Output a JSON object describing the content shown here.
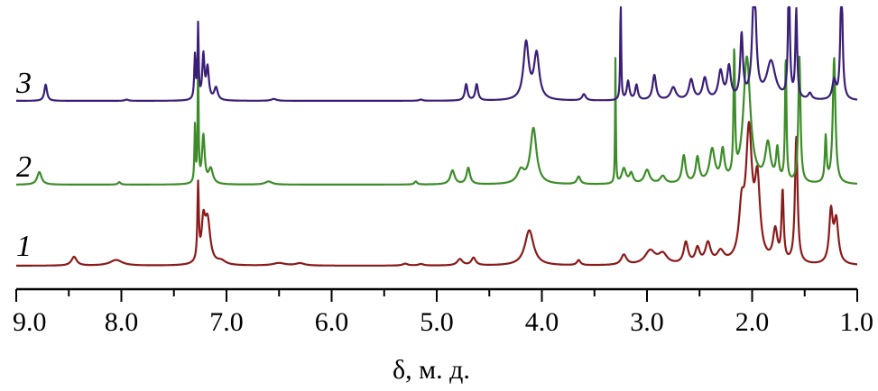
{
  "chart_data": {
    "type": "line",
    "xlabel": "δ, м. д.",
    "ylabel": "",
    "xlim": [
      9.0,
      1.0
    ],
    "x_reversed": true,
    "x_ticks": [
      9.0,
      8.0,
      7.0,
      6.0,
      5.0,
      4.0,
      3.0,
      2.0,
      1.0
    ],
    "x_tick_labels": [
      "9.0",
      "8.0",
      "7.0",
      "6.0",
      "5.0",
      "4.0",
      "3.0",
      "2.0",
      "1.0"
    ],
    "grid": false,
    "legend": "none",
    "series": [
      {
        "label": "1",
        "color": "#8b1a1a",
        "baseline": 0,
        "peaks": [
          [
            8.45,
            0.07,
            0.03
          ],
          [
            8.05,
            0.045,
            0.07
          ],
          [
            7.27,
            0.6,
            0.008
          ],
          [
            7.22,
            0.3,
            0.02
          ],
          [
            7.18,
            0.34,
            0.03
          ],
          [
            7.05,
            0.03,
            0.05
          ],
          [
            6.5,
            0.02,
            0.07
          ],
          [
            6.3,
            0.018,
            0.05
          ],
          [
            5.3,
            0.015,
            0.03
          ],
          [
            5.15,
            0.012,
            0.03
          ],
          [
            4.78,
            0.05,
            0.03
          ],
          [
            4.65,
            0.06,
            0.025
          ],
          [
            4.12,
            0.28,
            0.05
          ],
          [
            3.65,
            0.04,
            0.02
          ],
          [
            3.22,
            0.08,
            0.03
          ],
          [
            2.97,
            0.11,
            0.06
          ],
          [
            2.85,
            0.08,
            0.05
          ],
          [
            2.63,
            0.17,
            0.025
          ],
          [
            2.52,
            0.12,
            0.025
          ],
          [
            2.42,
            0.16,
            0.03
          ],
          [
            2.3,
            0.09,
            0.04
          ],
          [
            2.1,
            0.37,
            0.03
          ],
          [
            2.03,
            1.0,
            0.035
          ],
          [
            1.95,
            0.6,
            0.03
          ],
          [
            1.78,
            0.25,
            0.025
          ],
          [
            1.71,
            0.55,
            0.012
          ],
          [
            1.58,
            1.0,
            0.015
          ],
          [
            1.25,
            0.4,
            0.02
          ],
          [
            1.2,
            0.34,
            0.025
          ]
        ]
      },
      {
        "label": "2",
        "color": "#3c8c28",
        "baseline": 0,
        "peaks": [
          [
            8.78,
            0.1,
            0.025
          ],
          [
            8.02,
            0.02,
            0.015
          ],
          [
            7.3,
            0.45,
            0.006
          ],
          [
            7.27,
            1.0,
            0.005
          ],
          [
            7.22,
            0.38,
            0.015
          ],
          [
            7.15,
            0.12,
            0.025
          ],
          [
            6.6,
            0.025,
            0.04
          ],
          [
            5.2,
            0.025,
            0.015
          ],
          [
            4.85,
            0.11,
            0.025
          ],
          [
            4.7,
            0.13,
            0.02
          ],
          [
            4.2,
            0.1,
            0.04
          ],
          [
            4.08,
            0.44,
            0.035
          ],
          [
            3.65,
            0.06,
            0.02
          ],
          [
            3.3,
            1.0,
            0.004
          ],
          [
            3.22,
            0.12,
            0.025
          ],
          [
            3.15,
            0.08,
            0.02
          ],
          [
            3.0,
            0.11,
            0.03
          ],
          [
            2.85,
            0.06,
            0.03
          ],
          [
            2.65,
            0.22,
            0.02
          ],
          [
            2.52,
            0.2,
            0.02
          ],
          [
            2.38,
            0.26,
            0.03
          ],
          [
            2.28,
            0.24,
            0.02
          ],
          [
            2.17,
            1.0,
            0.008
          ],
          [
            2.05,
            1.0,
            0.04
          ],
          [
            1.85,
            0.3,
            0.03
          ],
          [
            1.76,
            0.25,
            0.015
          ],
          [
            1.68,
            1.0,
            0.008
          ],
          [
            1.55,
            1.0,
            0.012
          ],
          [
            1.3,
            0.36,
            0.01
          ],
          [
            1.22,
            1.0,
            0.015
          ]
        ]
      },
      {
        "label": "3",
        "color": "#3a1e78",
        "baseline": 0,
        "peaks": [
          [
            8.72,
            0.13,
            0.015
          ],
          [
            7.95,
            0.01,
            0.02
          ],
          [
            7.3,
            0.35,
            0.008
          ],
          [
            7.27,
            0.58,
            0.006
          ],
          [
            7.22,
            0.35,
            0.012
          ],
          [
            7.18,
            0.25,
            0.015
          ],
          [
            7.1,
            0.1,
            0.02
          ],
          [
            6.55,
            0.015,
            0.03
          ],
          [
            5.15,
            0.01,
            0.02
          ],
          [
            4.72,
            0.13,
            0.015
          ],
          [
            4.62,
            0.13,
            0.015
          ],
          [
            4.15,
            0.45,
            0.03
          ],
          [
            4.05,
            0.36,
            0.03
          ],
          [
            3.6,
            0.05,
            0.02
          ],
          [
            3.25,
            0.85,
            0.005
          ],
          [
            3.18,
            0.15,
            0.015
          ],
          [
            3.1,
            0.12,
            0.015
          ],
          [
            2.93,
            0.2,
            0.02
          ],
          [
            2.75,
            0.1,
            0.03
          ],
          [
            2.58,
            0.16,
            0.025
          ],
          [
            2.45,
            0.17,
            0.025
          ],
          [
            2.3,
            0.22,
            0.025
          ],
          [
            2.22,
            0.25,
            0.02
          ],
          [
            2.1,
            0.5,
            0.015
          ],
          [
            1.98,
            1.0,
            0.02
          ],
          [
            1.82,
            0.3,
            0.05
          ],
          [
            1.65,
            1.0,
            0.01
          ],
          [
            1.58,
            0.7,
            0.01
          ],
          [
            1.45,
            0.05,
            0.02
          ],
          [
            1.22,
            0.15,
            0.02
          ],
          [
            1.15,
            1.0,
            0.012
          ]
        ]
      }
    ]
  }
}
